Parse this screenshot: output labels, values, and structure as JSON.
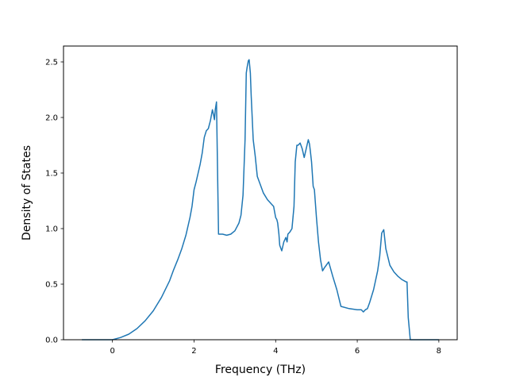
{
  "chart_data": {
    "type": "line",
    "title": "",
    "xlabel": "Frequency (THz)",
    "ylabel": "Density of States",
    "xlim": [
      -1.2,
      8.45
    ],
    "ylim": [
      0,
      2.5
    ],
    "xticks": [
      0,
      2,
      4,
      6,
      8
    ],
    "xtick_labels": [
      "0",
      "2",
      "4",
      "6",
      "8"
    ],
    "yticks": [
      0.0,
      0.5,
      1.0,
      1.5,
      2.0,
      2.5
    ],
    "ytick_labels": [
      "0.0",
      "0.5",
      "1.0",
      "1.5",
      "2.0",
      "2.5"
    ],
    "grid": false,
    "legend": "none",
    "series": [
      {
        "color": "#1f77b4",
        "x": [
          -0.75,
          0.0,
          0.2,
          0.4,
          0.6,
          0.8,
          1.0,
          1.2,
          1.4,
          1.5,
          1.6,
          1.7,
          1.8,
          1.9,
          1.95,
          2.0,
          2.05,
          2.1,
          2.15,
          2.2,
          2.25,
          2.3,
          2.35,
          2.4,
          2.45,
          2.48,
          2.5,
          2.52,
          2.55,
          2.6,
          2.7,
          2.8,
          2.9,
          3.0,
          3.1,
          3.15,
          3.2,
          3.25,
          3.28,
          3.3,
          3.33,
          3.35,
          3.38,
          3.4,
          3.45,
          3.5,
          3.55,
          3.6,
          3.7,
          3.8,
          3.9,
          3.95,
          4.0,
          4.03,
          4.05,
          4.08,
          4.1,
          4.13,
          4.15,
          4.2,
          4.25,
          4.28,
          4.3,
          4.35,
          4.4,
          4.45,
          4.48,
          4.52,
          4.55,
          4.6,
          4.62,
          4.65,
          4.7,
          4.75,
          4.8,
          4.83,
          4.85,
          4.88,
          4.92,
          4.95,
          5.0,
          5.05,
          5.1,
          5.15,
          5.2,
          5.3,
          5.4,
          5.5,
          5.6,
          5.8,
          6.0,
          6.1,
          6.15,
          6.2,
          6.25,
          6.3,
          6.4,
          6.5,
          6.55,
          6.6,
          6.65,
          6.7,
          6.8,
          6.9,
          7.0,
          7.1,
          7.2,
          7.22,
          7.25,
          7.3,
          7.5,
          8.0
        ],
        "y": [
          0.0,
          0.0,
          0.02,
          0.05,
          0.1,
          0.17,
          0.26,
          0.38,
          0.53,
          0.63,
          0.72,
          0.82,
          0.94,
          1.1,
          1.2,
          1.35,
          1.42,
          1.5,
          1.58,
          1.68,
          1.82,
          1.88,
          1.9,
          1.97,
          2.07,
          2.02,
          1.98,
          2.07,
          2.14,
          0.95,
          0.95,
          0.94,
          0.95,
          0.98,
          1.05,
          1.12,
          1.3,
          1.8,
          2.4,
          2.45,
          2.51,
          2.52,
          2.4,
          2.2,
          1.8,
          1.65,
          1.47,
          1.42,
          1.32,
          1.26,
          1.22,
          1.2,
          1.1,
          1.08,
          1.05,
          0.95,
          0.85,
          0.82,
          0.8,
          0.88,
          0.92,
          0.88,
          0.95,
          0.97,
          1.0,
          1.2,
          1.6,
          1.75,
          1.75,
          1.77,
          1.75,
          1.72,
          1.64,
          1.72,
          1.8,
          1.76,
          1.7,
          1.6,
          1.38,
          1.35,
          1.1,
          0.88,
          0.72,
          0.62,
          0.65,
          0.7,
          0.57,
          0.45,
          0.3,
          0.28,
          0.27,
          0.27,
          0.25,
          0.27,
          0.28,
          0.33,
          0.45,
          0.62,
          0.75,
          0.96,
          0.99,
          0.82,
          0.67,
          0.61,
          0.57,
          0.54,
          0.52,
          0.52,
          0.2,
          0.0,
          0.0,
          0.0
        ]
      }
    ]
  }
}
